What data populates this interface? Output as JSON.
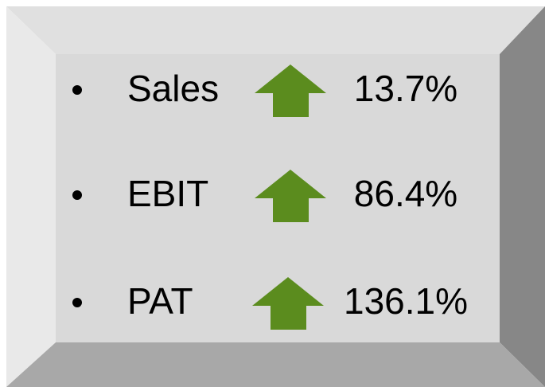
{
  "items": [
    {
      "label": "Sales",
      "value": "13.7%"
    },
    {
      "label": "EBIT",
      "value": "86.4%"
    },
    {
      "label": "PAT",
      "value": "136.1%"
    }
  ]
}
